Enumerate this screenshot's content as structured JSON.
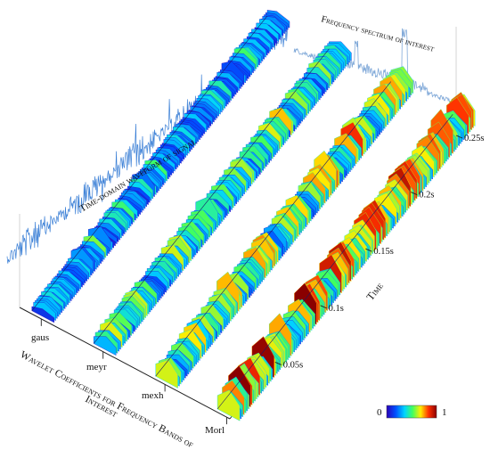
{
  "chart_data": {
    "type": "area",
    "title": "",
    "annotations": {
      "time_waveform": "Time-domain waveform of signal",
      "frequency_spectrum": "Frequency spectrum of interest"
    },
    "category_axis": {
      "label_line1": "Wavelet Coefficients for Frequency Bands of",
      "label_line2": "Interest",
      "categories": [
        "gaus",
        "meyr",
        "mexh",
        "Morl"
      ]
    },
    "time_axis": {
      "label": "Time",
      "unit": "s",
      "range": [
        0,
        0.25
      ],
      "ticks": [
        {
          "value": 0.05,
          "label": "0.05s"
        },
        {
          "value": 0.1,
          "label": "0.1s"
        },
        {
          "value": 0.15,
          "label": "0.15s"
        },
        {
          "value": 0.2,
          "label": "0.2s"
        },
        {
          "value": 0.25,
          "label": "0.25s"
        }
      ]
    },
    "colorbar": {
      "min_label": "0",
      "max_label": "1",
      "colormap": "jet",
      "range": [
        0,
        1
      ]
    },
    "series": [
      {
        "category": "gaus",
        "peak_level": 0.55
      },
      {
        "category": "meyr",
        "peak_level": 0.75
      },
      {
        "category": "mexh",
        "peak_level": 0.85
      },
      {
        "category": "Morl",
        "peak_level": 1.0
      }
    ],
    "grid": false
  },
  "colors": {
    "waveform": "#3a7fd6",
    "spectrum": "#7fa8d8",
    "axis": "#222222",
    "background": "#ffffff"
  }
}
